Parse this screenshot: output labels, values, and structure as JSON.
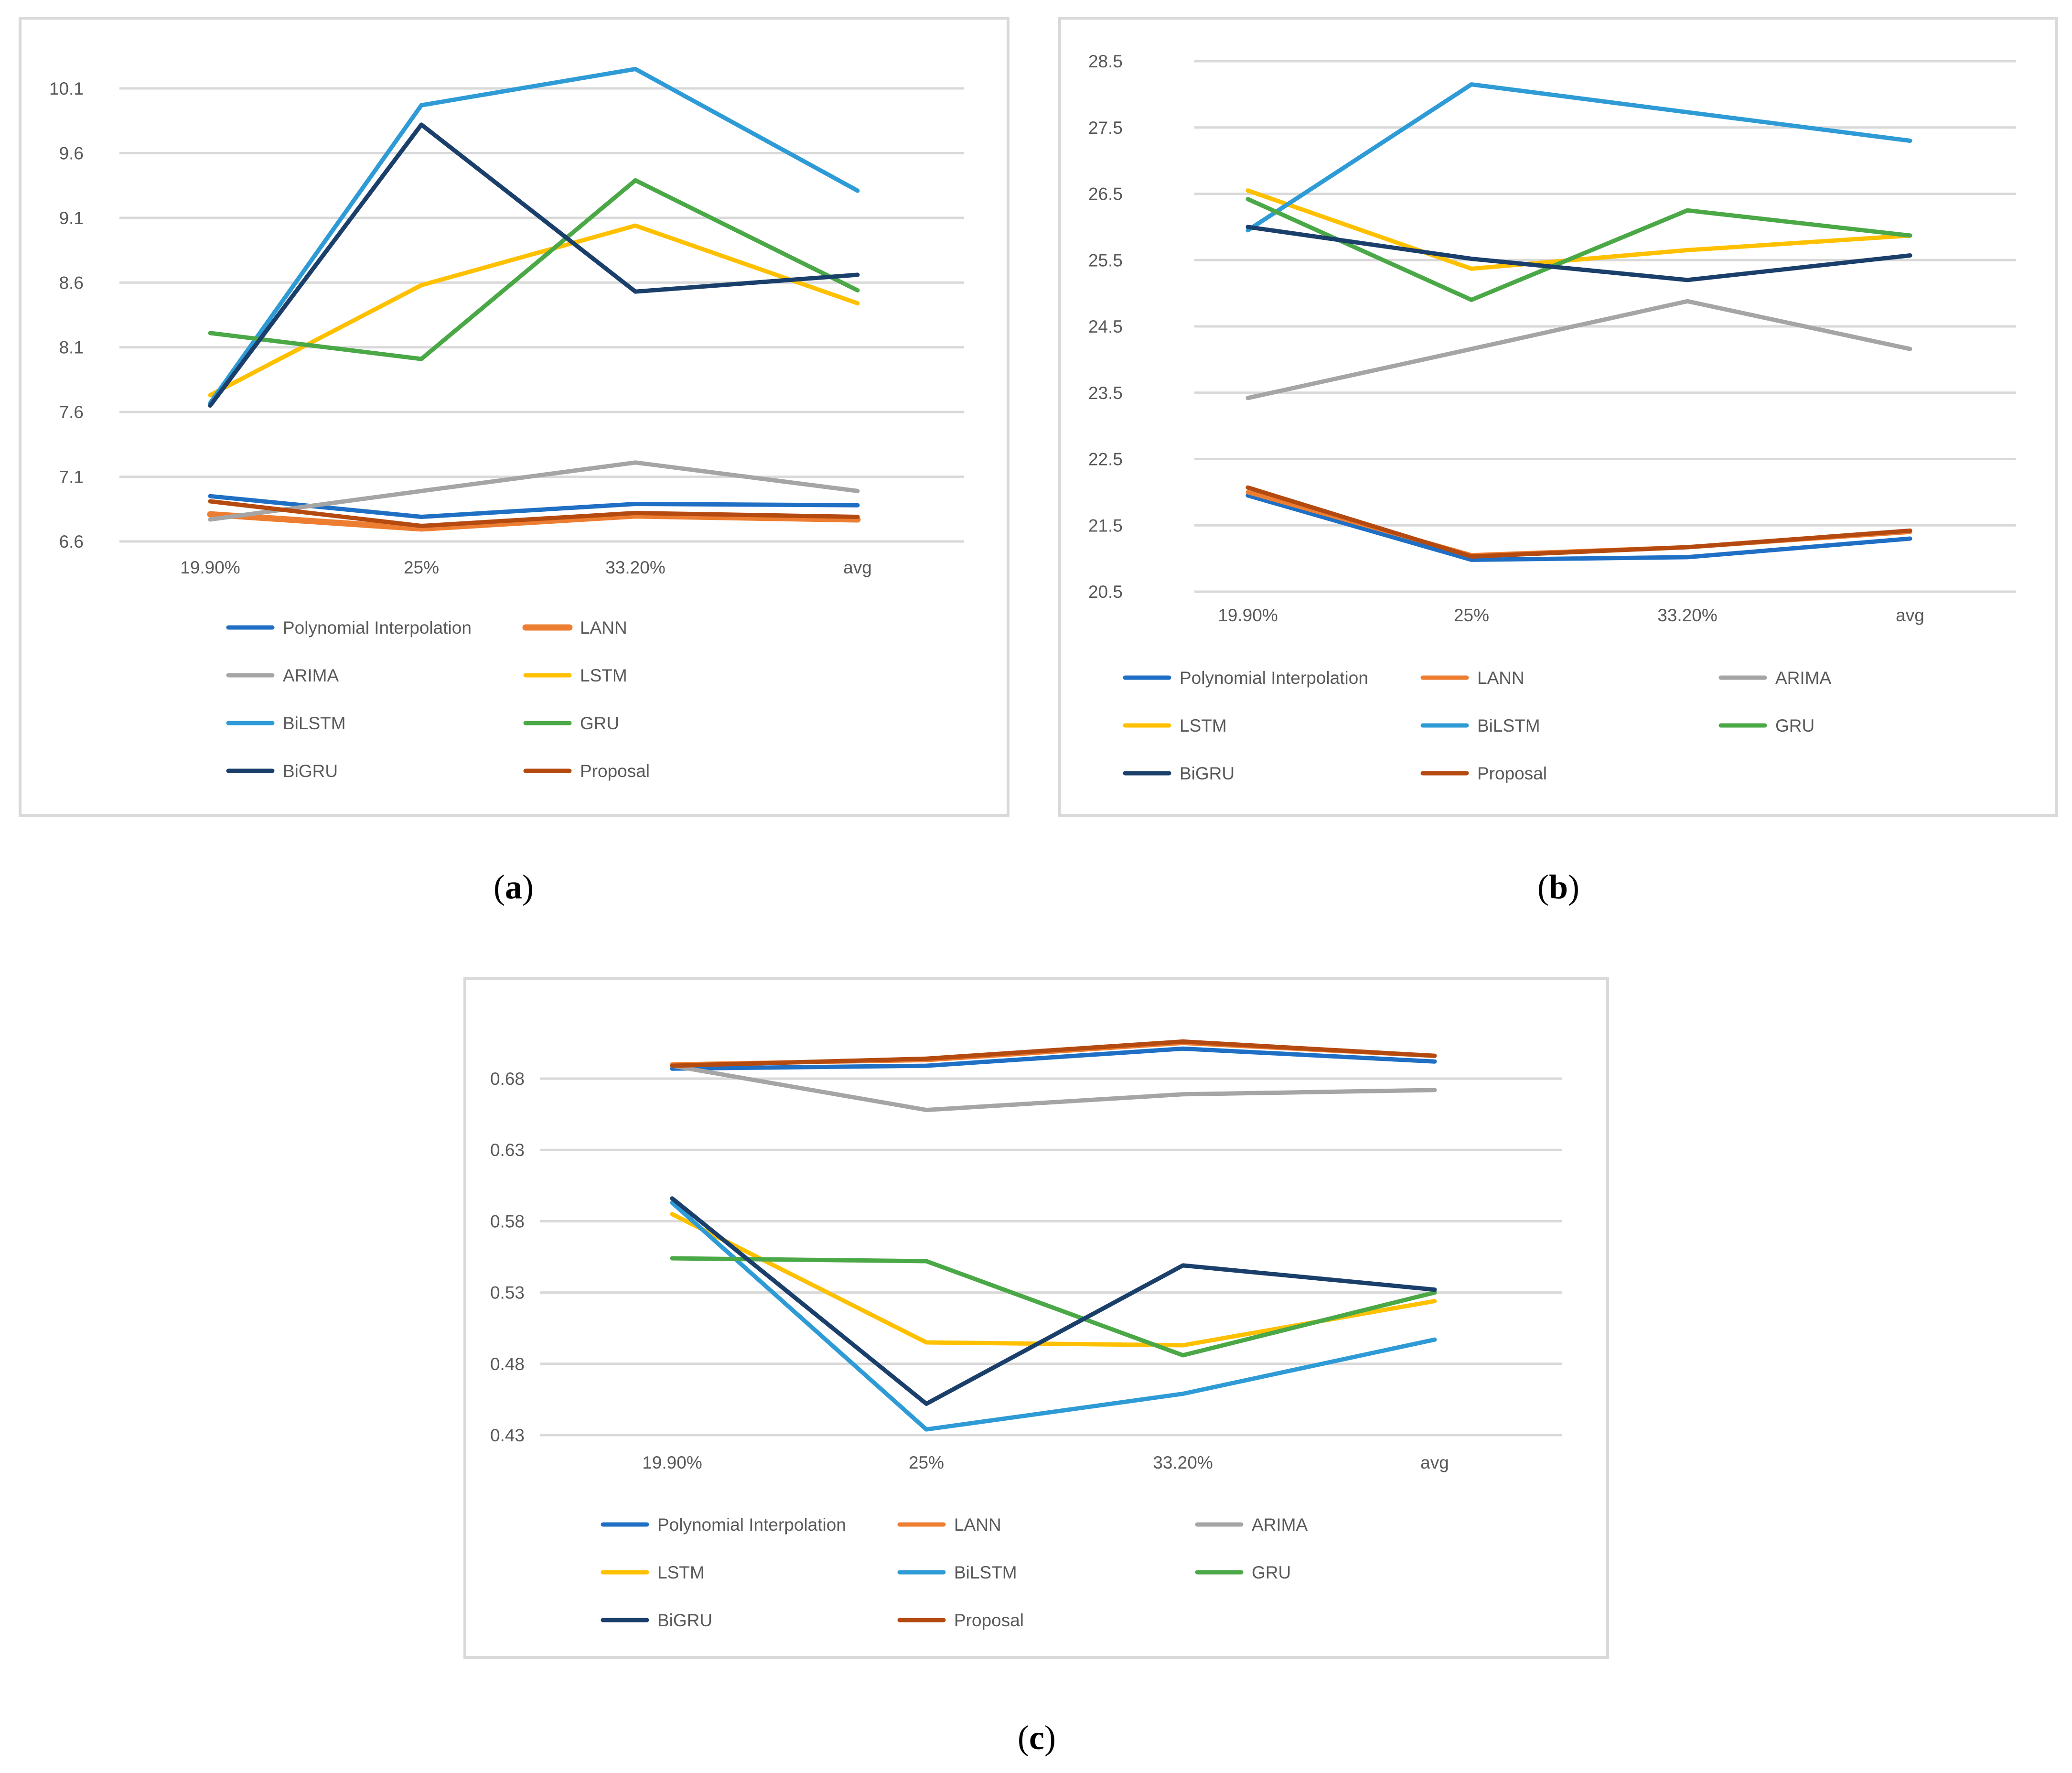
{
  "figure": {
    "colors": {
      "frame": "#d9d9d9",
      "grid": "#d9d9d9",
      "text": "#595959"
    },
    "panels": [
      {
        "caption_letter": "a",
        "chart_data": {
          "type": "line",
          "categories": [
            "19.90%",
            "25%",
            "33.20%",
            "avg"
          ],
          "yticks": [
            "6.6",
            "7.1",
            "7.6",
            "8.1",
            "8.6",
            "9.1",
            "9.6",
            "10.1"
          ],
          "ylim": [
            6.6,
            10.1
          ],
          "series": [
            {
              "name": "Polynomial Interpolation",
              "color": "#1f6fc5",
              "values": [
                6.95,
                6.79,
                6.89,
                6.88
              ]
            },
            {
              "name": "LANN",
              "color": "#ed7d31",
              "values": [
                6.81,
                6.7,
                6.8,
                6.77
              ]
            },
            {
              "name": "ARIMA",
              "color": "#a5a5a5",
              "values": [
                6.77,
                6.99,
                7.21,
                6.99
              ]
            },
            {
              "name": "LSTM",
              "color": "#ffc000",
              "values": [
                7.73,
                8.58,
                9.04,
                8.44
              ]
            },
            {
              "name": "BiLSTM",
              "color": "#2e9bd6",
              "values": [
                7.67,
                9.97,
                10.25,
                9.31
              ]
            },
            {
              "name": "GRU",
              "color": "#4aa846",
              "values": [
                8.21,
                8.01,
                9.39,
                8.54
              ]
            },
            {
              "name": "BiGRU",
              "color": "#1b3f6b",
              "values": [
                7.65,
                9.82,
                8.53,
                8.66
              ]
            },
            {
              "name": "Proposal",
              "color": "#b54a10",
              "values": [
                6.91,
                6.72,
                6.82,
                6.79
              ]
            }
          ]
        }
      },
      {
        "caption_letter": "b",
        "chart_data": {
          "type": "line",
          "categories": [
            "19.90%",
            "25%",
            "33.20%",
            "avg"
          ],
          "yticks": [
            "20.5",
            "21.5",
            "22.5",
            "23.5",
            "24.5",
            "25.5",
            "26.5",
            "27.5",
            "28.5"
          ],
          "ylim": [
            20.5,
            28.5
          ],
          "series": [
            {
              "name": "Polynomial Interpolation",
              "color": "#1f6fc5",
              "values": [
                21.95,
                20.98,
                21.02,
                21.3
              ]
            },
            {
              "name": "LANN",
              "color": "#ed7d31",
              "values": [
                22.0,
                21.05,
                21.17,
                21.4
              ]
            },
            {
              "name": "ARIMA",
              "color": "#a5a5a5",
              "values": [
                23.42,
                24.16,
                24.88,
                24.16
              ]
            },
            {
              "name": "LSTM",
              "color": "#ffc000",
              "values": [
                26.55,
                25.37,
                25.65,
                25.87
              ]
            },
            {
              "name": "BiLSTM",
              "color": "#2e9bd6",
              "values": [
                25.95,
                28.15,
                27.73,
                27.3
              ]
            },
            {
              "name": "GRU",
              "color": "#4aa846",
              "values": [
                26.42,
                24.9,
                26.25,
                25.87
              ]
            },
            {
              "name": "BiGRU",
              "color": "#1b3f6b",
              "values": [
                26.0,
                25.52,
                25.2,
                25.57
              ]
            },
            {
              "name": "Proposal",
              "color": "#b54a10",
              "values": [
                22.07,
                21.03,
                21.17,
                21.42
              ]
            }
          ]
        }
      },
      {
        "caption_letter": "c",
        "chart_data": {
          "type": "line",
          "categories": [
            "19.90%",
            "25%",
            "33.20%",
            "avg"
          ],
          "yticks": [
            "0.43",
            "0.48",
            "0.53",
            "0.58",
            "0.63",
            "0.68"
          ],
          "ylim": [
            0.43,
            0.68
          ],
          "series": [
            {
              "name": "Polynomial Interpolation",
              "color": "#1f6fc5",
              "values": [
                0.687,
                0.689,
                0.701,
                0.692
              ]
            },
            {
              "name": "LANN",
              "color": "#ed7d31",
              "values": [
                0.69,
                0.693,
                0.705,
                0.696
              ]
            },
            {
              "name": "ARIMA",
              "color": "#a5a5a5",
              "values": [
                0.689,
                0.658,
                0.669,
                0.672
              ]
            },
            {
              "name": "LSTM",
              "color": "#ffc000",
              "values": [
                0.585,
                0.495,
                0.493,
                0.524
              ]
            },
            {
              "name": "BiLSTM",
              "color": "#2e9bd6",
              "values": [
                0.593,
                0.434,
                0.459,
                0.497
              ]
            },
            {
              "name": "GRU",
              "color": "#4aa846",
              "values": [
                0.554,
                0.552,
                0.486,
                0.53
              ]
            },
            {
              "name": "BiGRU",
              "color": "#1b3f6b",
              "values": [
                0.596,
                0.452,
                0.549,
                0.532
              ]
            },
            {
              "name": "Proposal",
              "color": "#b54a10",
              "values": [
                0.689,
                0.694,
                0.706,
                0.696
              ]
            }
          ]
        }
      }
    ]
  }
}
